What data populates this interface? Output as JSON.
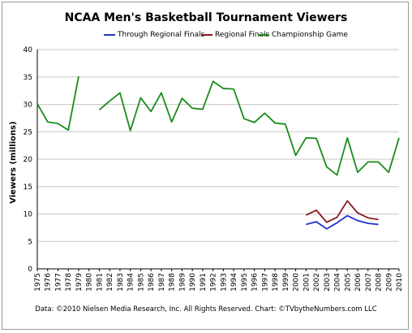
{
  "chart_data": {
    "type": "line",
    "title": "NCAA Men's Basketball Tournament Viewers",
    "xlabel": "",
    "ylabel": "Viewers (millions)",
    "ylim": [
      0,
      40
    ],
    "yticks": [
      0,
      5,
      10,
      15,
      20,
      25,
      30,
      35,
      40
    ],
    "grid": true,
    "legend_position": "top",
    "x": [
      "1975",
      "1976",
      "1977",
      "1978",
      "1979",
      "1980",
      "1981",
      "1982",
      "1983",
      "1984",
      "1985",
      "1986",
      "1987",
      "1988",
      "1989",
      "1990",
      "1991",
      "1992",
      "1993",
      "1994",
      "1995",
      "1996",
      "1997",
      "1998",
      "1999",
      "2000",
      "2001",
      "2002",
      "2003",
      "2004",
      "2005",
      "2006",
      "2007",
      "2008",
      "2009",
      "2010"
    ],
    "series": [
      {
        "name": "Through Regional Finals",
        "color": "#2233cc",
        "values": [
          null,
          null,
          null,
          null,
          null,
          null,
          null,
          null,
          null,
          null,
          null,
          null,
          null,
          null,
          null,
          null,
          null,
          null,
          null,
          null,
          null,
          null,
          null,
          null,
          null,
          null,
          8.1,
          8.6,
          7.3,
          8.4,
          9.7,
          8.8,
          8.3,
          8.1,
          null,
          null
        ]
      },
      {
        "name": "Regional Finals",
        "color": "#8b1a1a",
        "values": [
          null,
          null,
          null,
          null,
          null,
          null,
          null,
          null,
          null,
          null,
          null,
          null,
          null,
          null,
          null,
          null,
          null,
          null,
          null,
          null,
          null,
          null,
          null,
          null,
          null,
          null,
          9.8,
          10.7,
          8.5,
          9.4,
          12.4,
          10.2,
          9.3,
          9.0,
          null,
          null
        ]
      },
      {
        "name": "Championship Game",
        "color": "#1a8c1a",
        "values": [
          30.1,
          26.8,
          26.5,
          25.3,
          35.1,
          null,
          29.0,
          30.6,
          32.1,
          25.2,
          31.2,
          28.7,
          32.1,
          26.8,
          31.1,
          29.3,
          29.1,
          34.2,
          32.9,
          32.8,
          27.4,
          26.7,
          28.4,
          26.6,
          26.4,
          20.7,
          23.9,
          23.8,
          18.6,
          17.1,
          23.9,
          17.6,
          19.5,
          19.5,
          17.6,
          23.9
        ]
      }
    ]
  },
  "footer": {
    "source": "Data: ©2010 Nielsen Media Research, Inc. All Rights Reserved. Chart: ©TVbytheNumbers.com LLC"
  }
}
